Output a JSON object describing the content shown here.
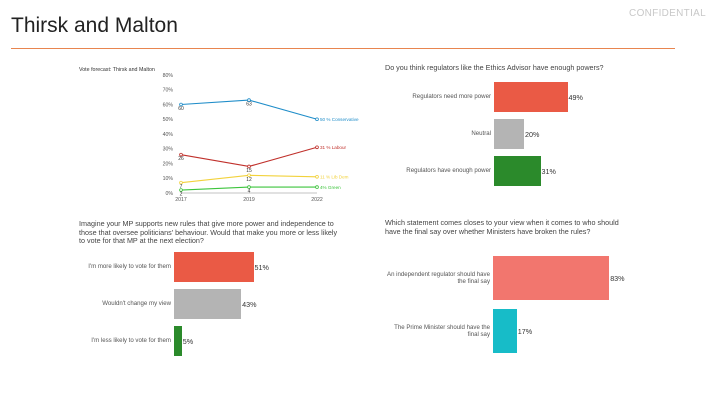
{
  "header": {
    "title": "Thirsk and Malton",
    "confidential": "CONFIDENTIAL"
  },
  "colors": {
    "accent_rule": "#e8854f",
    "conservative": "#1f8dc9",
    "labour": "#c0302b",
    "lib_dem": "#f2d23c",
    "green": "#3cc43c",
    "red_bar": "#ea5a45",
    "grey_bar": "#b4b4b4",
    "green_bar": "#2b8a2b",
    "salmon_bar": "#f2766e",
    "teal_bar": "#17bcc8"
  },
  "chart_data": [
    {
      "type": "line",
      "title": "Vote forecast: Thirsk and Malton",
      "x": [
        "2017",
        "2019",
        "2022"
      ],
      "ylim": [
        0,
        80
      ],
      "yticks": [
        "0%",
        "10%",
        "20%",
        "30%",
        "40%",
        "50%",
        "60%",
        "70%",
        "80%"
      ],
      "series": [
        {
          "name": "Conservative",
          "values": [
            60,
            63,
            50
          ],
          "labels": [
            "60",
            "63",
            ""
          ],
          "end_label": "50 % Conservative",
          "color": "#1f8dc9"
        },
        {
          "name": "Labour",
          "values": [
            26,
            18,
            31
          ],
          "labels": [
            "26",
            "",
            ""
          ],
          "end_label": "31 % Labour",
          "color": "#c0302b"
        },
        {
          "name": "Lib Dem",
          "values": [
            7,
            12,
            11
          ],
          "labels": [
            "7",
            "12",
            ""
          ],
          "end_label": "11 % Lib Dem",
          "color": "#f2d23c"
        },
        {
          "name": "Green",
          "values": [
            2,
            4,
            4
          ],
          "labels": [
            "2",
            "4",
            ""
          ],
          "end_label": "4% Green",
          "color": "#3cc43c"
        }
      ],
      "extra_labels": [
        "15"
      ]
    },
    {
      "type": "bar",
      "title": "Do you think regulators like the Ethics Advisor have enough powers?",
      "categories": [
        "Regulators need more power",
        "Neutral",
        "Regulators have enough power"
      ],
      "values": [
        49,
        20,
        31
      ],
      "value_labels": [
        "49%",
        "20%",
        "31%"
      ],
      "colors": [
        "#ea5a45",
        "#b4b4b4",
        "#2b8a2b"
      ]
    },
    {
      "type": "bar",
      "title": "Imagine your MP supports new rules that give more power and independence to those that oversee politicians' behaviour. Would that make you more or less likely to vote for that MP at the next election?",
      "categories": [
        "I'm more likely to vote for them",
        "Wouldn't change my view",
        "I'm less likely to vote for them"
      ],
      "values": [
        51,
        43,
        5
      ],
      "value_labels": [
        "51%",
        "43%",
        "5%"
      ],
      "colors": [
        "#ea5a45",
        "#b4b4b4",
        "#2b8a2b"
      ]
    },
    {
      "type": "bar",
      "title": "Which statement comes closes to your view when it comes to who should have the final say over whether Ministers have broken the rules?",
      "categories": [
        "An independent regulator should have the final say",
        "The Prime Minister should have the final say"
      ],
      "values": [
        83,
        17
      ],
      "value_labels": [
        "83%",
        "17%"
      ],
      "colors": [
        "#f2766e",
        "#17bcc8"
      ]
    }
  ]
}
